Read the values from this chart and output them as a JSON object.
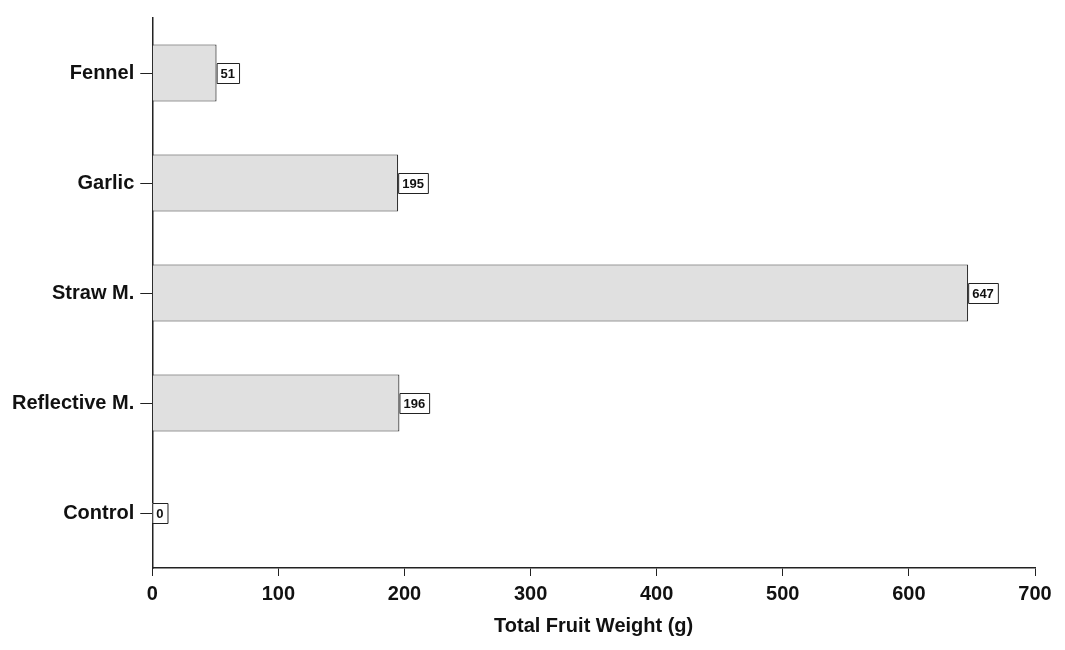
{
  "chart_data": {
    "type": "bar",
    "orientation": "horizontal",
    "xlabel": "Total Fruit Weight (g)",
    "categories": [
      "Fennel",
      "Garlic",
      "Straw M.",
      "Reflective M.",
      "Control"
    ],
    "values": [
      51,
      195,
      647,
      196,
      0
    ],
    "color": "#e0e0e0",
    "xlim": [
      0,
      700
    ],
    "xticks": [
      0,
      100,
      200,
      300,
      400,
      500,
      600,
      700
    ],
    "data_labels": true,
    "grid": false,
    "legend": false
  }
}
